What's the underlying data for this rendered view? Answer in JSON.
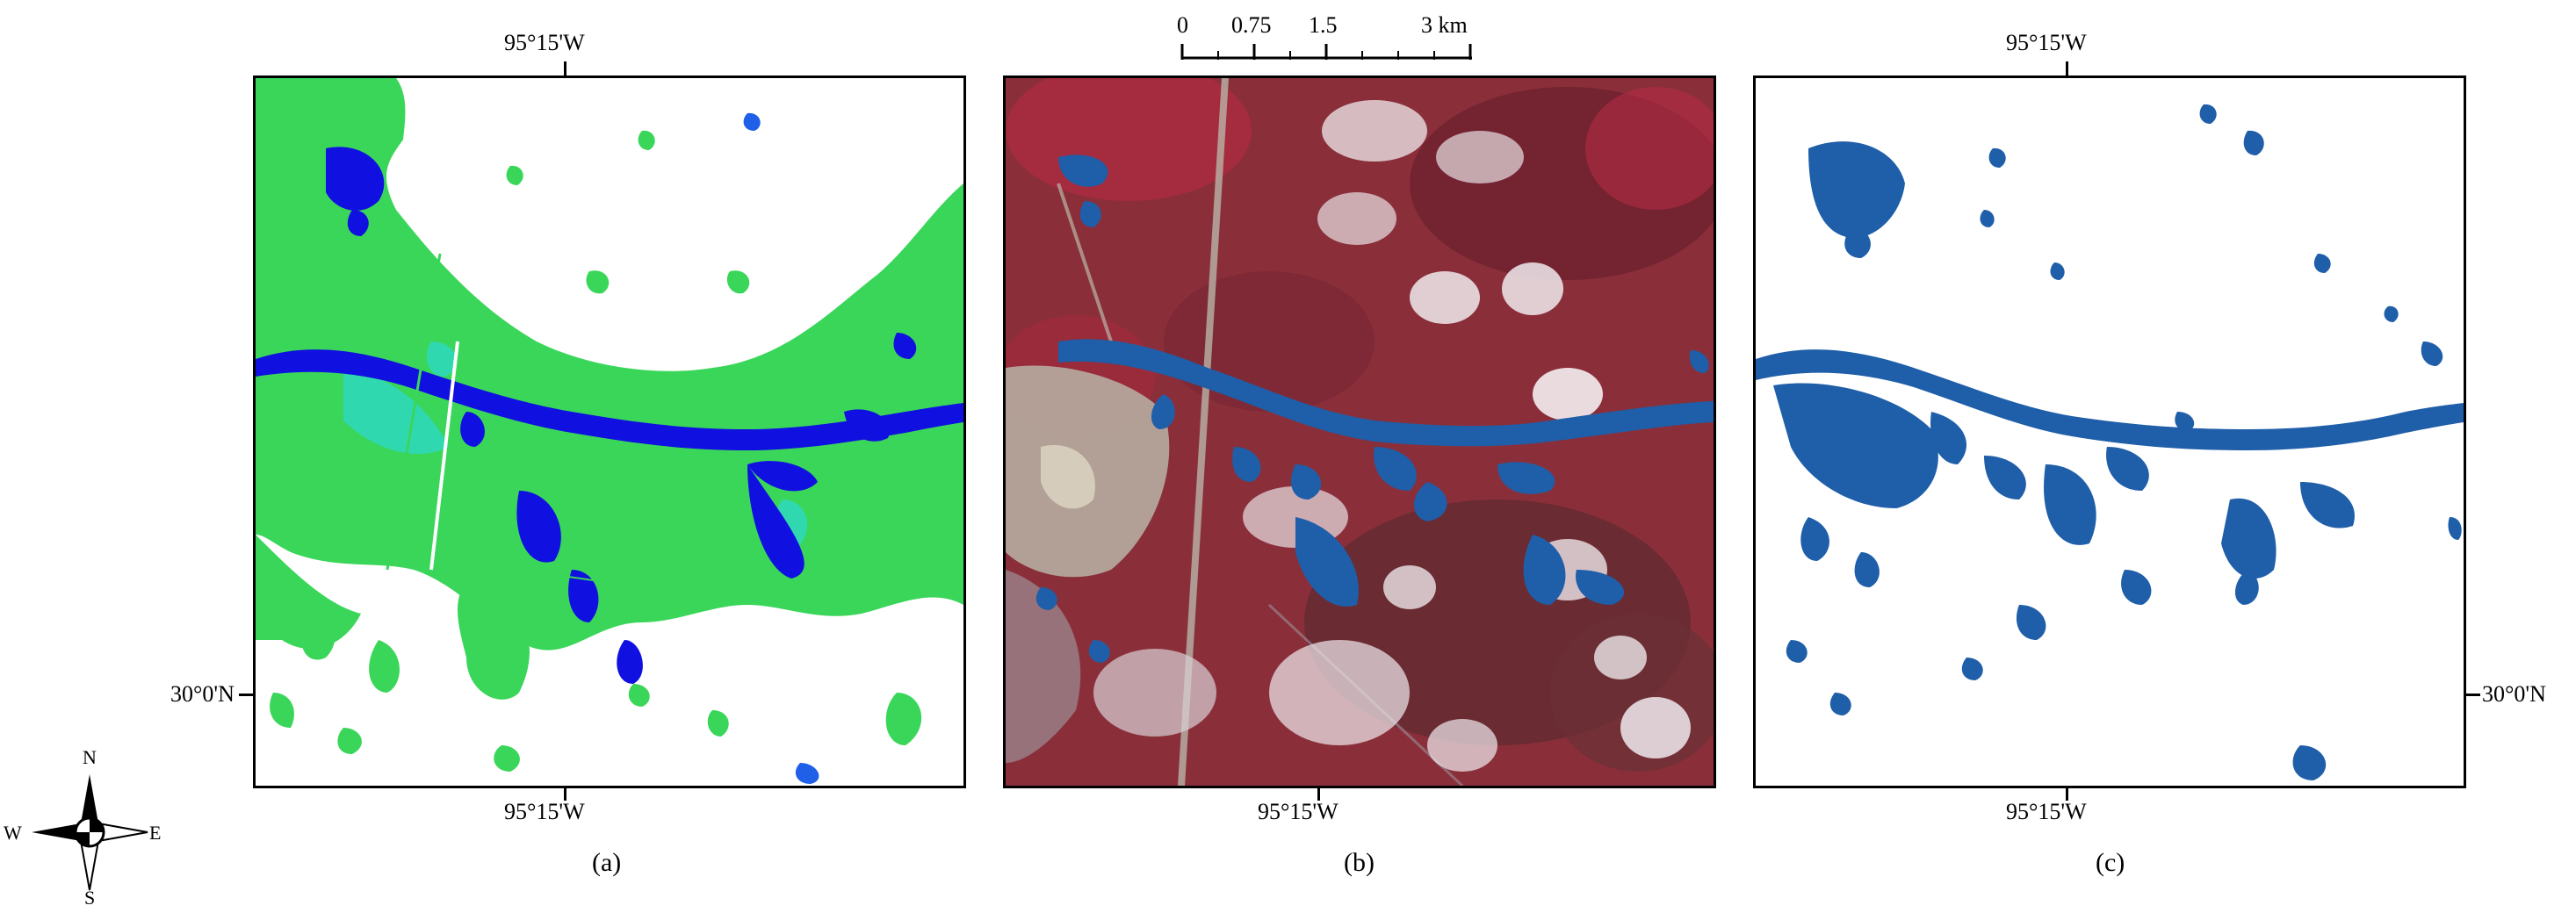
{
  "panels": [
    {
      "caption": "(a)",
      "top_label": "95°15'W",
      "bottom_label": "95°15'W",
      "left_label": "30°0'N"
    },
    {
      "caption": "(b)",
      "bottom_label": "95°15'W"
    },
    {
      "caption": "(c)",
      "top_label": "95°15'W",
      "bottom_label": "95°15'W",
      "right_label": "30°0'N"
    }
  ],
  "scale_bar": {
    "ticks": [
      "0",
      "0.75",
      "1.5",
      "3 km"
    ]
  },
  "compass": {
    "n": "N",
    "s": "S",
    "e": "E",
    "w": "W"
  },
  "colors": {
    "water": "#1f5ea8",
    "water_deep": "#1010e0",
    "flood_vegetation": "#3ad65a",
    "flood_cyan": "#30d8b0",
    "false_color_base": "#8a2f3a",
    "cloud": "#e8e0e4",
    "urban": "#b9b4a8"
  }
}
